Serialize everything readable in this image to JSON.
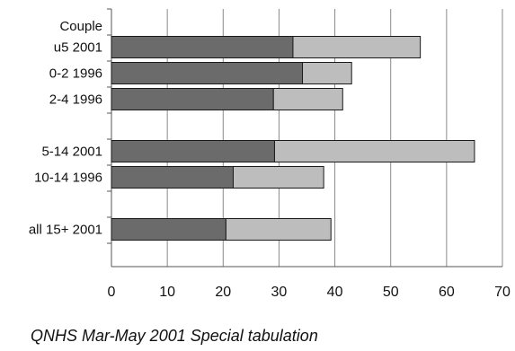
{
  "chart_data": {
    "type": "bar",
    "orientation": "horizontal",
    "stacked": true,
    "header_label": "Couple",
    "categories": [
      "u5 2001",
      "0-2 1996",
      "2-4 1996",
      "",
      "5-14 2001",
      "10-14 1996",
      "",
      "all 15+ 2001"
    ],
    "series": [
      {
        "values": [
          32.5,
          34.2,
          29.0,
          null,
          29.2,
          21.8,
          null,
          20.5
        ],
        "color": "#6b6b6b"
      },
      {
        "values": [
          22.8,
          8.8,
          12.4,
          null,
          35.8,
          16.2,
          null,
          18.8
        ],
        "color": "#bdbdbd"
      }
    ],
    "xlim": [
      0,
      70
    ],
    "xticks": [
      0,
      10,
      20,
      30,
      40,
      50,
      60,
      70
    ],
    "grid": "vertical",
    "legend": "none"
  },
  "source_note": "QNHS Mar-May 2001 Special tabulation"
}
